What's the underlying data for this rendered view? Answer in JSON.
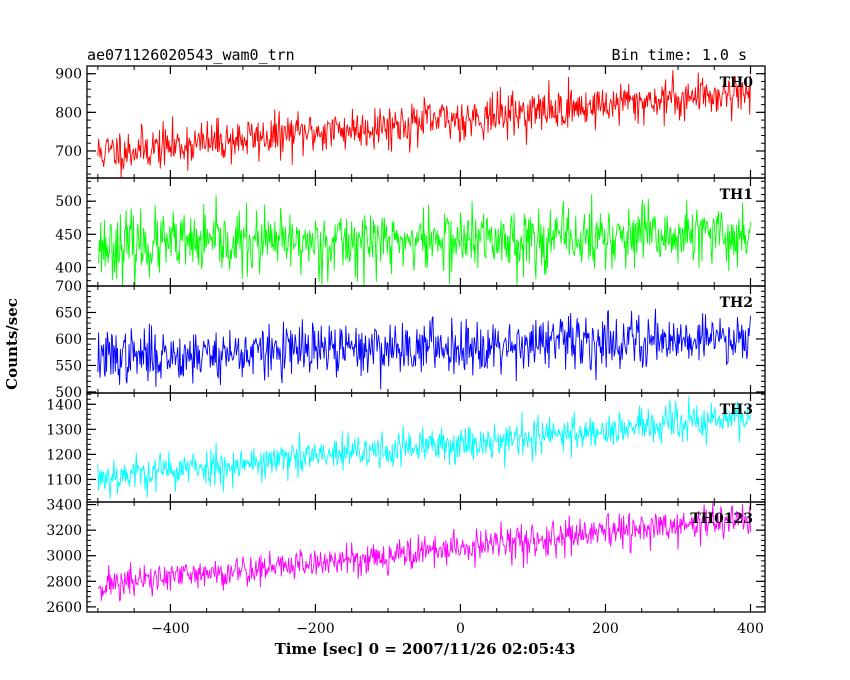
{
  "chart_data": {
    "type": "line",
    "title": "ae071126020543_wam0_trn",
    "bin_time_label": "Bin time: 1.0 s",
    "xlabel": "Time [sec] 0 = 2007/11/26 02:05:43",
    "ylabel": "Counts/sec",
    "xlim": [
      -515,
      420
    ],
    "x_ticks": [
      -400,
      -200,
      0,
      200,
      400
    ],
    "x_tick_labels": [
      "−400",
      "−200",
      "0",
      "200",
      "400"
    ],
    "x_start": -500,
    "x_end": 400,
    "panels": [
      {
        "name": "TH0",
        "color": "#ff0000",
        "ylim": [
          630,
          920
        ],
        "y_ticks": [
          700,
          800,
          900
        ],
        "y_tick_labels": [
          "700",
          "800",
          "900"
        ],
        "trend_start": 695,
        "trend_end": 855,
        "noise": 28,
        "seed": 11
      },
      {
        "name": "TH1",
        "color": "#00ff00",
        "ylim": [
          372,
          535
        ],
        "y_ticks": [
          400,
          450,
          500
        ],
        "y_tick_labels": [
          "400",
          "450",
          "500"
        ],
        "trend_start": 433,
        "trend_end": 448,
        "noise": 24,
        "seed": 23
      },
      {
        "name": "TH2",
        "color": "#0000ff",
        "ylim": [
          498,
          700
        ],
        "y_ticks": [
          500,
          550,
          600,
          650,
          700
        ],
        "y_tick_labels": [
          "500",
          "550",
          "600",
          "650",
          "700"
        ],
        "trend_start": 565,
        "trend_end": 605,
        "noise": 25,
        "seed": 37
      },
      {
        "name": "TH3",
        "color": "#00ffff",
        "ylim": [
          1010,
          1445
        ],
        "y_ticks": [
          1100,
          1200,
          1300,
          1400
        ],
        "y_tick_labels": [
          "1100",
          "1200",
          "1300",
          "1400"
        ],
        "trend_start": 1110,
        "trend_end": 1350,
        "noise": 38,
        "seed": 53
      },
      {
        "name": "TH0123",
        "color": "#ff00ff",
        "ylim": [
          2560,
          3420
        ],
        "y_ticks": [
          2600,
          2800,
          3000,
          3200,
          3400
        ],
        "y_tick_labels": [
          "2600",
          "2800",
          "3000",
          "3200",
          "3400"
        ],
        "trend_start": 2770,
        "trend_end": 3290,
        "noise": 65,
        "seed": 71
      }
    ]
  }
}
